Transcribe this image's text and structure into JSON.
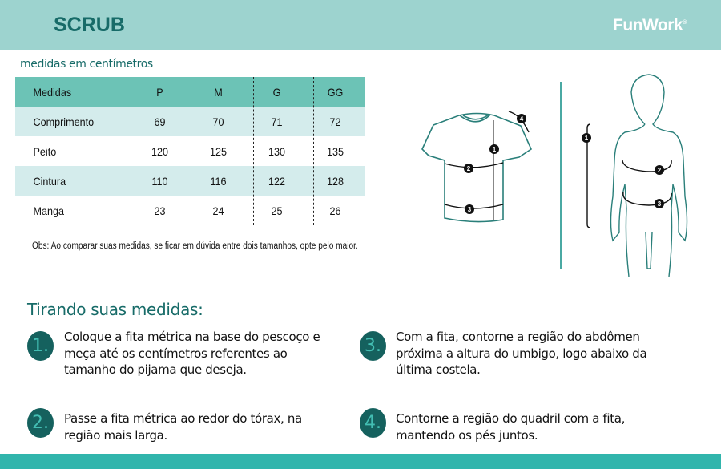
{
  "header": {
    "title": "SCRUB",
    "brand": "FunWork",
    "brand_mark": "®"
  },
  "subtitle": "medidas em centímetros",
  "table": {
    "headers": [
      "Medidas",
      "P",
      "M",
      "G",
      "GG"
    ],
    "rows": [
      [
        "Comprimento",
        "69",
        "70",
        "71",
        "72"
      ],
      [
        "Peito",
        "120",
        "125",
        "130",
        "135"
      ],
      [
        "Cintura",
        "110",
        "116",
        "122",
        "128"
      ],
      [
        "Manga",
        "23",
        "24",
        "25",
        "26"
      ]
    ]
  },
  "note": "Obs: Ao comparar suas medidas, se ficar em dúvida entre dois tamanhos, opte pelo maior.",
  "diagram": {
    "shirt_markers": [
      "1",
      "2",
      "3",
      "4"
    ],
    "body_markers": [
      "1",
      "2",
      "3"
    ]
  },
  "instructions": {
    "heading": "Tirando suas medidas:",
    "steps": [
      {
        "num": "1.",
        "text": "Coloque a fita métrica na base do pescoço e meça até os centímetros referentes ao tamanho do pijama que deseja."
      },
      {
        "num": "2.",
        "text": "Passe a fita métrica ao redor do tórax, na região mais larga."
      },
      {
        "num": "3.",
        "text": "Com a fita, contorne a região do abdômen próxima a altura do umbigo, logo abaixo da última costela."
      },
      {
        "num": "4.",
        "text": "Contorne a região do quadril com a fita, mantendo os pés juntos."
      }
    ]
  },
  "colors": {
    "header_band": "#9dd3cf",
    "title": "#176b68",
    "table_header": "#6cc3b6",
    "row_alt": "#d4ecec",
    "footer": "#31b5ac"
  }
}
